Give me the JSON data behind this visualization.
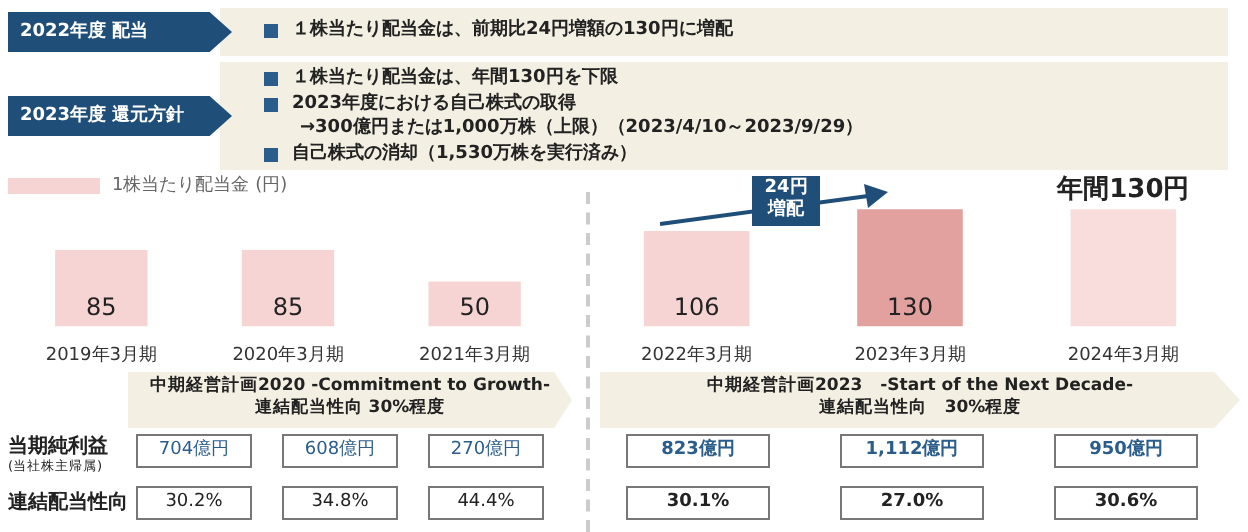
{
  "chart_data": [
    {
      "type": "bar",
      "categories": [
        "2019年3月期",
        "2020年3月期",
        "2021年3月期"
      ],
      "series": [
        {
          "name": "1株当たり配当金 (円)",
          "color": "#f7d4d4",
          "values": [
            85,
            85,
            50
          ]
        }
      ],
      "data_labels": true,
      "legend": "top left",
      "annotations": [
        "2022年度 配当",
        "１株当たり配当金は、前期比24円増額の130円に増配",
        "2023年度 還元方針",
        "１株当たり配当金は、年間130円を下限",
        "2023年度における自己株式の取得",
        "→300億円または1,000万株（上限）（2023/4/10～2023/9/29）",
        "自己株式の消却（1,530万株を実行済み）",
        "中期経営計画2020 -Commitment to Growth-",
        "連結配当性向 30%程度",
        "当期純利益",
        "(当社株主帰属)",
        "連結配当性向",
        "704億円",
        "608億円",
        "270億円",
        "30.2%",
        "34.8%",
        "44.4%"
      ]
    },
    {
      "type": "bar",
      "categories": [
        "2022年3月期",
        "2023年3月期",
        "2024年3月期"
      ],
      "values": [
        106,
        130,
        130
      ],
      "colors": [
        "#f7d4d4",
        "#e2a09f",
        "#f9dcdc"
      ],
      "value_labels": [
        "106",
        "130",
        "年間130円"
      ],
      "annotations": [
        "24円",
        "増配",
        "中期経営計画2023　-Start of the Next Decade-",
        "連結配当性向　30%程度",
        "823億円",
        "1,112億円",
        "950億円",
        "30.1%",
        "27.0%",
        "30.6%"
      ]
    }
  ]
}
